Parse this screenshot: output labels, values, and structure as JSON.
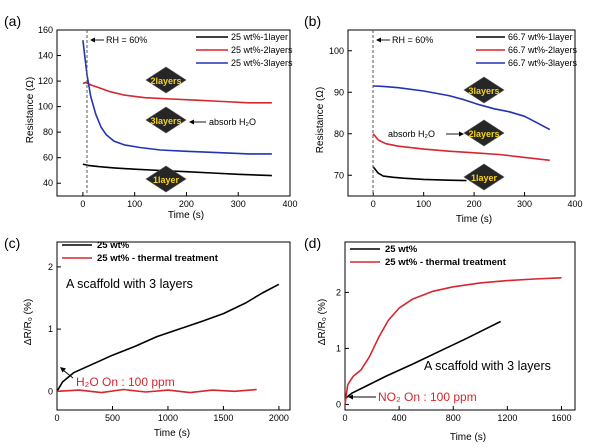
{
  "panels": [
    {
      "letter": "(a)",
      "xlabel": "Time (s)",
      "ylabel": "Resistance (Ω)",
      "legend": [
        "25 wt%-1layer",
        "25 wt%-2layers",
        "25 wt%-3layers"
      ],
      "annotations": {
        "rh": "RH = 60%",
        "absorb": "absorb H₂O"
      },
      "badges": [
        "2layers",
        "3layers",
        "1layer"
      ]
    },
    {
      "letter": "(b)",
      "xlabel": "Time (s)",
      "ylabel": "Resistance (Ω)",
      "legend": [
        "66.7 wt%-1layer",
        "66.7 wt%-2layers",
        "66.7 wt%-3layers"
      ],
      "annotations": {
        "rh": "RH = 60%",
        "absorb": "absorb H₂O"
      },
      "badges": [
        "3layers",
        "2layers",
        "1layer"
      ]
    },
    {
      "letter": "(c)",
      "xlabel": "Time (s)",
      "ylabel": "ΔR/R₀ (%)",
      "legend": [
        "25 wt%",
        "25 wt% - thermal treatment"
      ],
      "annotations": {
        "scaffold": "A scaffold with 3 layers",
        "gas": "H₂O On : 100 ppm"
      }
    },
    {
      "letter": "(d)",
      "xlabel": "Time (s)",
      "ylabel": "ΔR/R₀ (%)",
      "legend": [
        "25 wt%",
        "25 wt% - thermal treatment"
      ],
      "annotations": {
        "scaffold": "A scaffold with 3 layers",
        "gas": "NO₂ On : 100 ppm"
      }
    }
  ],
  "colors": {
    "black": "#000000",
    "red": "#d6262f",
    "blue": "#2233b5",
    "badge_text": "#f4d21b"
  },
  "chart_data": [
    {
      "type": "line",
      "xlabel": "Time (s)",
      "ylabel": "Resistance (Ω)",
      "xlim": [
        -50,
        400
      ],
      "ylim": [
        30,
        160
      ],
      "xticks": [
        0,
        100,
        200,
        300,
        400
      ],
      "yticks": [
        40,
        60,
        80,
        100,
        120,
        140,
        160
      ],
      "grid": false,
      "legend_position": "top-right",
      "series": [
        {
          "name": "25 wt%-1layer",
          "color": "#000000",
          "x": [
            0,
            10,
            30,
            60,
            100,
            150,
            200,
            250,
            300,
            365
          ],
          "y": [
            55,
            54,
            53,
            52,
            51,
            50,
            49,
            48,
            47,
            46
          ]
        },
        {
          "name": "25 wt%-2layers",
          "color": "#d6262f",
          "x": [
            0,
            5,
            15,
            30,
            50,
            80,
            120,
            170,
            220,
            270,
            320,
            365
          ],
          "y": [
            118,
            119,
            117,
            115,
            112,
            109,
            107,
            106,
            105,
            104,
            103,
            103
          ]
        },
        {
          "name": "25 wt%-3layers",
          "color": "#2233b5",
          "x": [
            0,
            3,
            8,
            15,
            25,
            35,
            45,
            60,
            80,
            110,
            150,
            200,
            260,
            320,
            365
          ],
          "y": [
            152,
            142,
            125,
            108,
            94,
            84,
            78,
            73,
            70,
            68,
            66,
            65,
            64,
            63,
            63
          ]
        }
      ]
    },
    {
      "type": "line",
      "xlabel": "Time (s)",
      "ylabel": "Resistance (Ω)",
      "xlim": [
        -50,
        400
      ],
      "ylim": [
        65,
        105
      ],
      "xticks": [
        0,
        100,
        200,
        300,
        400
      ],
      "yticks": [
        70,
        80,
        90,
        100
      ],
      "grid": false,
      "legend_position": "top-right",
      "series": [
        {
          "name": "66.7 wt%-1layer",
          "color": "#000000",
          "x": [
            0,
            10,
            20,
            40,
            60,
            100,
            150,
            185
          ],
          "y": [
            72,
            70.5,
            69.8,
            69.5,
            69.3,
            69.0,
            68.8,
            68.7
          ]
        },
        {
          "name": "66.7 wt%-2layers",
          "color": "#d6262f",
          "x": [
            0,
            10,
            25,
            50,
            100,
            150,
            200,
            250,
            300,
            350
          ],
          "y": [
            80,
            78.5,
            77.6,
            77.0,
            76.3,
            75.8,
            75.4,
            75.0,
            74.3,
            73.6
          ]
        },
        {
          "name": "66.7 wt%-3layers",
          "color": "#2233b5",
          "x": [
            0,
            20,
            50,
            100,
            150,
            180,
            210,
            240,
            270,
            300,
            330,
            350
          ],
          "y": [
            91.5,
            91.4,
            91.1,
            90.3,
            89.2,
            88.2,
            87.0,
            86.0,
            85.3,
            84.2,
            82.3,
            81.0
          ]
        }
      ]
    },
    {
      "type": "line",
      "xlabel": "Time (s)",
      "ylabel": "ΔR/R₀ (%)",
      "xlim": [
        0,
        2100
      ],
      "ylim": [
        -0.3,
        2.4
      ],
      "xticks": [
        0,
        500,
        1000,
        1500,
        2000
      ],
      "yticks": [
        0,
        1,
        2
      ],
      "grid": false,
      "legend_position": "top-left",
      "series": [
        {
          "name": "25 wt%",
          "color": "#000000",
          "x": [
            0,
            50,
            150,
            300,
            500,
            700,
            900,
            1100,
            1300,
            1500,
            1700,
            1850,
            2000
          ],
          "y": [
            0,
            0.15,
            0.3,
            0.42,
            0.58,
            0.72,
            0.88,
            1.0,
            1.12,
            1.25,
            1.42,
            1.58,
            1.72
          ]
        },
        {
          "name": "25 wt% - thermal treatment",
          "color": "#d6262f",
          "x": [
            0,
            200,
            400,
            600,
            800,
            1000,
            1200,
            1400,
            1600,
            1800
          ],
          "y": [
            0,
            0.02,
            -0.02,
            0.03,
            -0.01,
            0.02,
            -0.02,
            0.02,
            0.0,
            0.03
          ]
        }
      ]
    },
    {
      "type": "line",
      "xlabel": "Time (s)",
      "ylabel": "ΔR/R₀ (%)",
      "xlim": [
        0,
        1700
      ],
      "ylim": [
        -0.1,
        2.9
      ],
      "xticks": [
        0,
        400,
        800,
        1200,
        1600
      ],
      "yticks": [
        0,
        1,
        2
      ],
      "grid": false,
      "legend_position": "top-left",
      "series": [
        {
          "name": "25 wt%",
          "color": "#000000",
          "x": [
            0,
            50,
            150,
            300,
            500,
            700,
            900,
            1050,
            1150
          ],
          "y": [
            0.1,
            0.2,
            0.32,
            0.5,
            0.72,
            0.95,
            1.18,
            1.36,
            1.48
          ]
        },
        {
          "name": "25 wt% - thermal treatment",
          "color": "#d6262f",
          "x": [
            0,
            20,
            60,
            120,
            180,
            250,
            320,
            400,
            500,
            650,
            800,
            1000,
            1200,
            1400,
            1600
          ],
          "y": [
            0.0,
            0.35,
            0.5,
            0.62,
            0.85,
            1.2,
            1.5,
            1.72,
            1.88,
            2.02,
            2.1,
            2.17,
            2.21,
            2.24,
            2.26
          ]
        }
      ]
    }
  ]
}
